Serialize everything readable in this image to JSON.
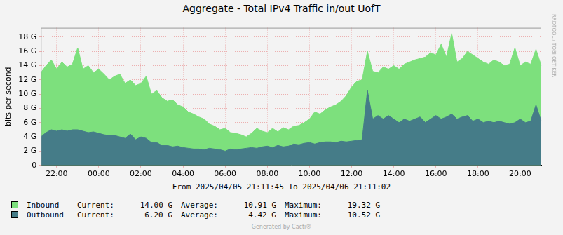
{
  "chart_data": {
    "type": "area",
    "title": "Aggregate - Total IPv4 Traffic in/out UofT",
    "y_label": "bits per second",
    "x_label": "From 2025/04/05 21:11:45 To 2025/04/06 21:11:02",
    "watermark": "Generated by Cacti®",
    "side_text": "RRDTOOL / TOBI OETIKER",
    "categories": [
      null,
      null,
      null,
      "22:00",
      null,
      null,
      null,
      null,
      null,
      null,
      null,
      "00:00",
      null,
      null,
      null,
      null,
      null,
      null,
      null,
      "02:00",
      null,
      null,
      null,
      null,
      null,
      null,
      null,
      "04:00",
      null,
      null,
      null,
      null,
      null,
      null,
      null,
      "06:00",
      null,
      null,
      null,
      null,
      null,
      null,
      null,
      "08:00",
      null,
      null,
      null,
      null,
      null,
      null,
      null,
      "10:00",
      null,
      null,
      null,
      null,
      null,
      null,
      null,
      "12:00",
      null,
      null,
      null,
      null,
      null,
      null,
      null,
      "14:00",
      null,
      null,
      null,
      null,
      null,
      null,
      null,
      "16:00",
      null,
      null,
      null,
      null,
      null,
      null,
      null,
      "18:00",
      null,
      null,
      null,
      null,
      null,
      null,
      null,
      "20:00",
      null,
      null,
      null,
      null
    ],
    "series": [
      {
        "name": "Inbound",
        "color": "#7de07d",
        "values": [
          13.0,
          14.0,
          14.8,
          13.5,
          14.5,
          13.8,
          14.2,
          16.5,
          13.5,
          14.0,
          13.0,
          13.5,
          12.8,
          12.0,
          12.5,
          12.8,
          11.5,
          12.0,
          11.2,
          11.5,
          12.5,
          10.0,
          10.5,
          9.5,
          9.0,
          9.2,
          8.5,
          8.2,
          7.5,
          7.2,
          6.8,
          6.5,
          5.8,
          5.5,
          5.0,
          5.2,
          4.6,
          4.5,
          4.3,
          4.0,
          4.5,
          5.2,
          4.8,
          4.6,
          5.2,
          4.7,
          5.3,
          5.0,
          5.5,
          5.6,
          6.0,
          6.5,
          7.5,
          7.2,
          7.8,
          8.2,
          8.5,
          9.0,
          9.8,
          11.0,
          11.8,
          12.0,
          16.0,
          13.2,
          13.0,
          13.8,
          13.5,
          14.0,
          13.5,
          14.2,
          14.5,
          14.8,
          15.0,
          15.2,
          15.8,
          15.5,
          17.0,
          15.2,
          18.5,
          14.5,
          15.0,
          16.0,
          15.5,
          15.0,
          14.5,
          14.2,
          14.8,
          14.5,
          14.0,
          14.2,
          16.5,
          14.0,
          14.5,
          14.2,
          16.3,
          14.0
        ]
      },
      {
        "name": "Outbound",
        "color": "#457c88",
        "values": [
          4.0,
          4.6,
          5.0,
          4.8,
          5.0,
          4.8,
          5.0,
          5.0,
          4.8,
          4.6,
          4.7,
          4.5,
          4.3,
          4.2,
          4.2,
          4.0,
          3.8,
          4.4,
          3.6,
          4.0,
          3.8,
          3.2,
          3.2,
          2.8,
          2.8,
          2.6,
          2.7,
          2.5,
          2.4,
          2.3,
          2.3,
          2.2,
          2.4,
          2.3,
          2.2,
          2.0,
          2.3,
          2.2,
          2.3,
          2.4,
          2.5,
          2.4,
          2.6,
          2.7,
          2.5,
          2.8,
          2.6,
          2.7,
          3.0,
          2.9,
          3.1,
          3.2,
          3.0,
          3.2,
          3.3,
          3.3,
          3.2,
          3.4,
          3.3,
          3.4,
          3.5,
          3.6,
          10.5,
          6.5,
          7.0,
          6.5,
          7.0,
          6.5,
          6.0,
          6.5,
          6.2,
          6.5,
          6.8,
          6.0,
          6.5,
          7.0,
          6.5,
          6.8,
          7.2,
          6.5,
          6.8,
          7.0,
          6.2,
          6.5,
          6.0,
          6.2,
          6.0,
          6.2,
          6.0,
          5.8,
          6.0,
          6.5,
          6.0,
          6.2,
          8.5,
          6.2
        ]
      }
    ],
    "ylim": [
      0,
      19.3
    ],
    "yticks": [
      0,
      {
        "value": 2,
        "label": "2 G"
      },
      {
        "value": 4,
        "label": "4 G"
      },
      {
        "value": 6,
        "label": "6 G"
      },
      {
        "value": 8,
        "label": "8 G"
      },
      {
        "value": 10,
        "label": "10 G"
      },
      {
        "value": 12,
        "label": "12 G"
      },
      {
        "value": 14,
        "label": "14 G"
      },
      {
        "value": 16,
        "label": "16 G"
      },
      {
        "value": 18,
        "label": "18 G"
      }
    ],
    "grid": true,
    "legend": "bottom",
    "stat_labels": [
      "Current:",
      "Average:",
      "Maximum:"
    ],
    "legend_stats": [
      {
        "name": "Inbound",
        "values": [
          {
            "value": 14.0,
            "label": "14.00 G"
          },
          {
            "value": 10.91,
            "label": "10.91 G"
          },
          {
            "value": 19.32,
            "label": "19.32 G"
          }
        ]
      },
      {
        "name": "Outbound",
        "values": [
          {
            "value": 6.2,
            "label": "6.20 G"
          },
          {
            "value": 4.42,
            "label": "4.42 G"
          },
          {
            "value": 10.52,
            "label": "10.52 G"
          }
        ]
      }
    ]
  }
}
